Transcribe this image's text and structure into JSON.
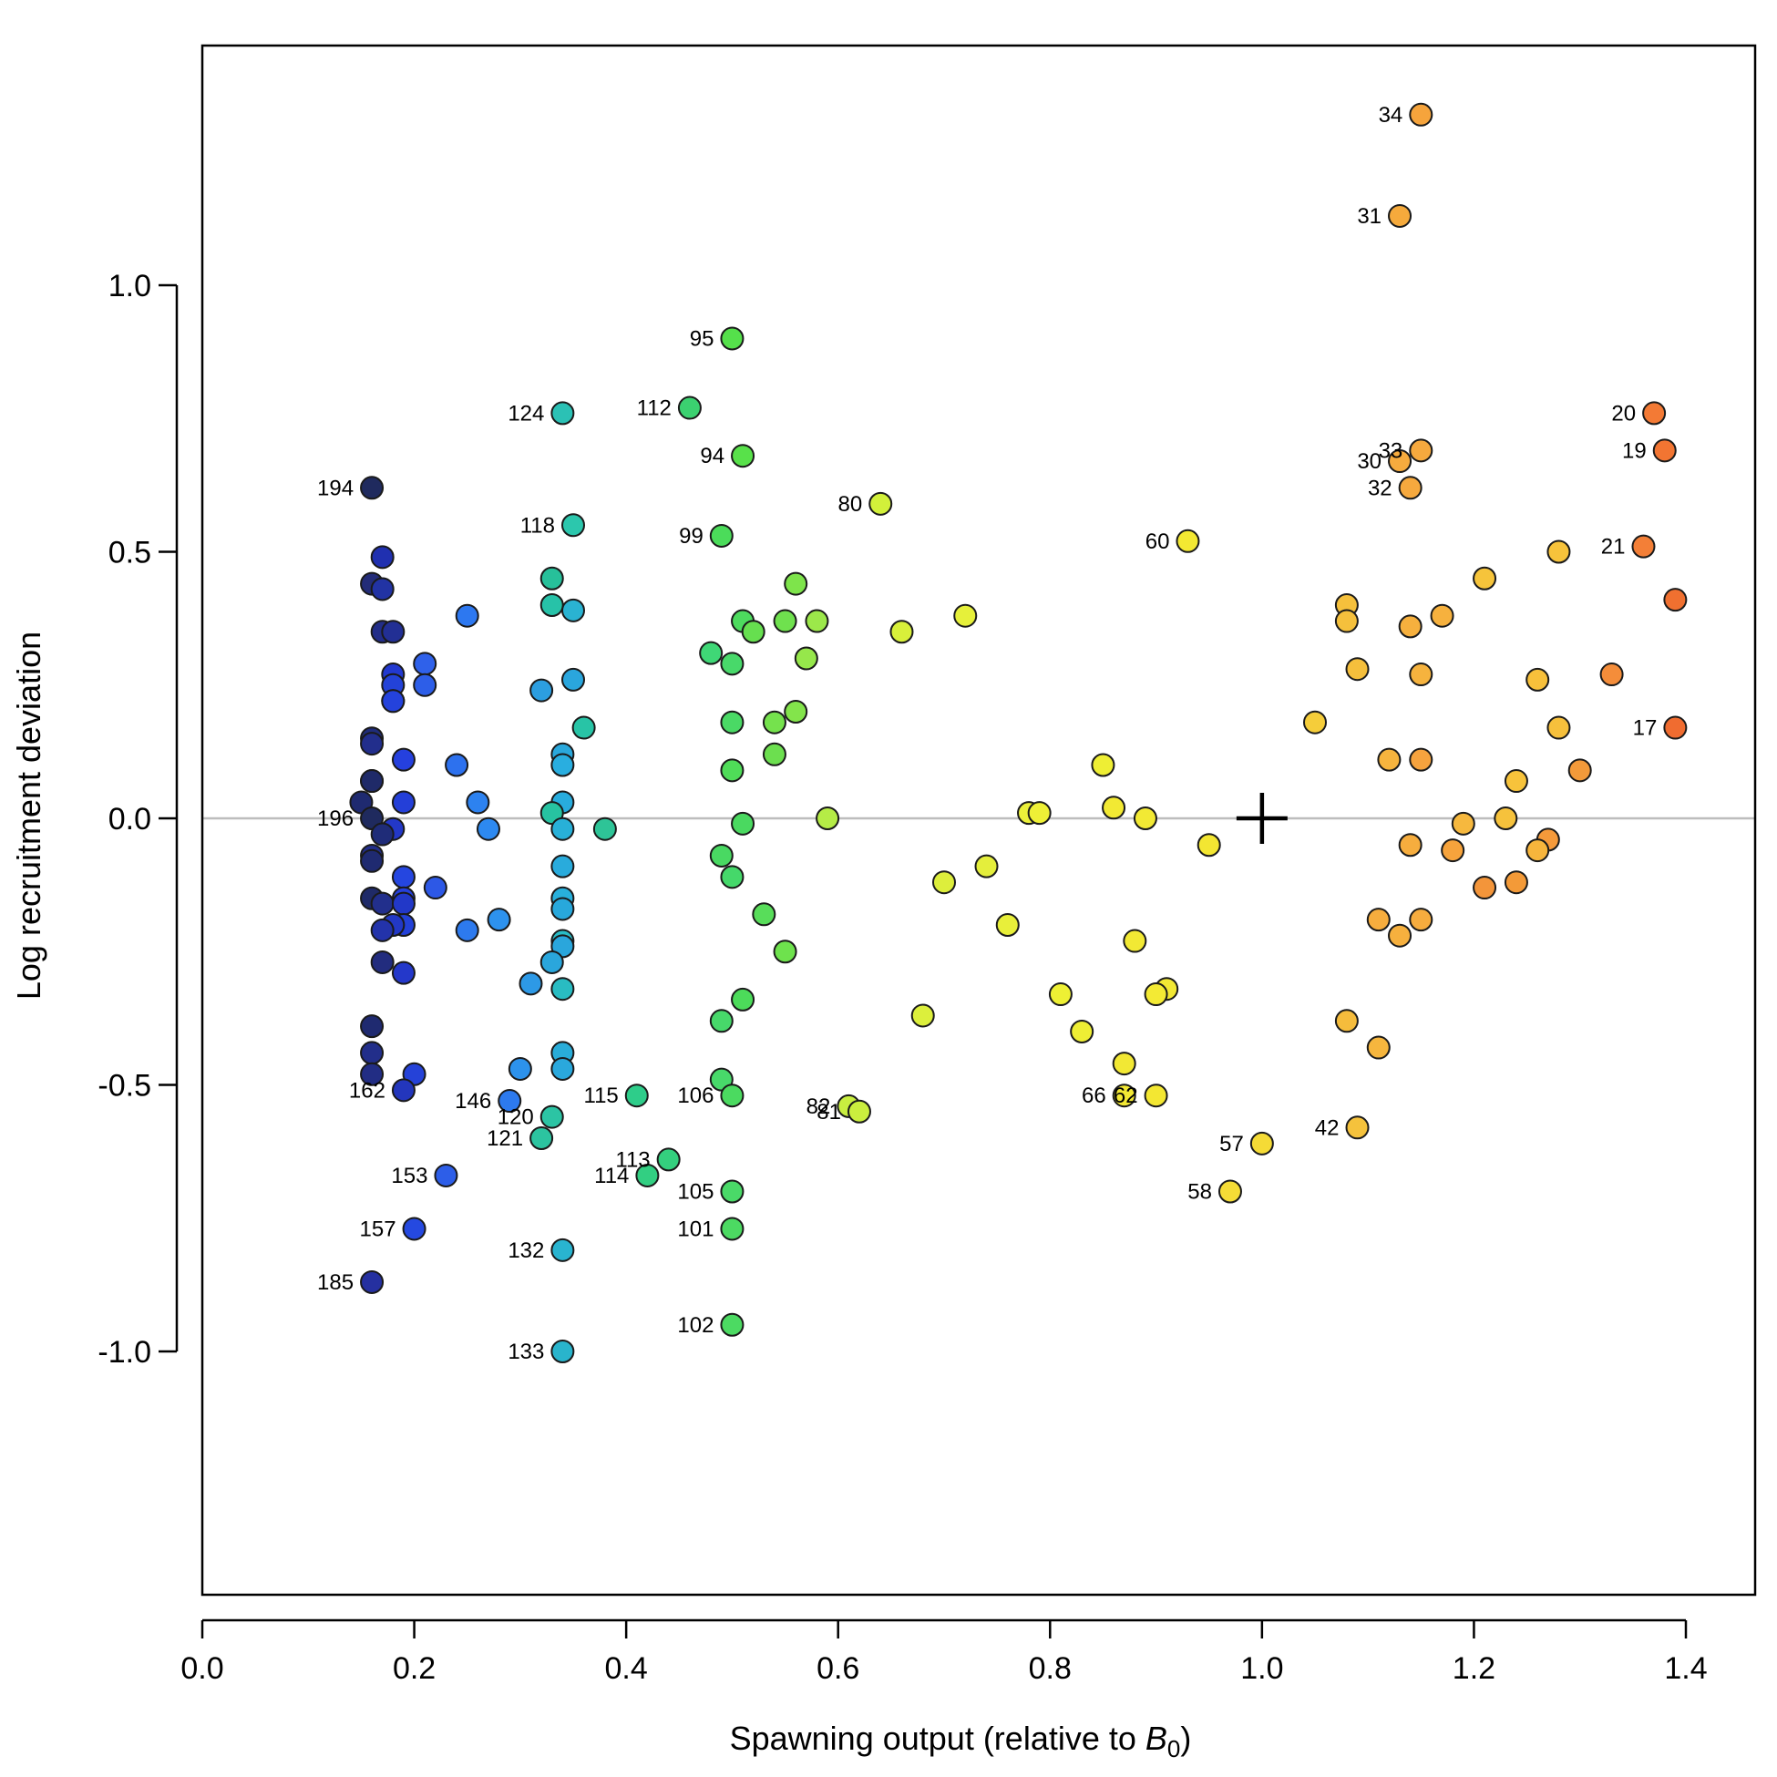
{
  "chart_data": {
    "type": "scatter",
    "title": "",
    "xlabel": "Spawning output (relative to ",
    "xlabel_sym": "B",
    "xlabel_sub": "0",
    "xlabel_end": ")",
    "ylabel": "Log recruitment deviation",
    "xlim": [
      0,
      1.4
    ],
    "ylim": [
      -1.4,
      1.4
    ],
    "xticks": [
      "0.0",
      "0.2",
      "0.4",
      "0.6",
      "0.8",
      "1.0",
      "1.2",
      "1.4"
    ],
    "yticks": [
      "-1.0",
      "-0.5",
      "0.0",
      "0.5",
      "1.0"
    ],
    "xtick_values": [
      0,
      0.2,
      0.4,
      0.6,
      0.8,
      1.0,
      1.2,
      1.4
    ],
    "ytick_values": [
      -1.0,
      -0.5,
      0.0,
      0.5,
      1.0
    ],
    "reference_line_y": 0,
    "reference_line_color": "#bdbdbd",
    "reference_marker": {
      "x": 1.0,
      "y": 0.0,
      "symbol": "plus"
    },
    "color_scale": "year-ordered rainbow (dark navy → blue → cyan → green → yellow → orange)",
    "points": [
      {
        "x": 1.15,
        "y": 1.32,
        "label": "34",
        "color": "#f6a43c"
      },
      {
        "x": 1.13,
        "y": 1.13,
        "label": "31",
        "color": "#f5aa3c"
      },
      {
        "x": 0.5,
        "y": 0.9,
        "label": "95",
        "color": "#55e04b"
      },
      {
        "x": 0.46,
        "y": 0.77,
        "label": "112",
        "color": "#3bd170"
      },
      {
        "x": 0.34,
        "y": 0.76,
        "label": "124",
        "color": "#2bc1b5"
      },
      {
        "x": 1.37,
        "y": 0.76,
        "label": "20",
        "color": "#f37a35"
      },
      {
        "x": 1.38,
        "y": 0.69,
        "label": "19",
        "color": "#f27532"
      },
      {
        "x": 0.51,
        "y": 0.68,
        "label": "94",
        "color": "#58e14a"
      },
      {
        "x": 1.15,
        "y": 0.69,
        "label": "33",
        "color": "#f6a93e"
      },
      {
        "x": 1.13,
        "y": 0.67,
        "label": "30",
        "color": "#f6ab3e"
      },
      {
        "x": 1.14,
        "y": 0.62,
        "label": "32",
        "color": "#f6a93e"
      },
      {
        "x": 0.16,
        "y": 0.62,
        "label": "194",
        "color": "#1f2a5e"
      },
      {
        "x": 0.64,
        "y": 0.59,
        "label": "80",
        "color": "#d2f03a"
      },
      {
        "x": 0.35,
        "y": 0.55,
        "label": "118",
        "color": "#2cc7ad"
      },
      {
        "x": 0.49,
        "y": 0.53,
        "label": "99",
        "color": "#4bdc5a"
      },
      {
        "x": 0.93,
        "y": 0.52,
        "label": "60",
        "color": "#f3e832"
      },
      {
        "x": 1.36,
        "y": 0.51,
        "label": "21",
        "color": "#f37f37"
      },
      {
        "x": 1.28,
        "y": 0.5,
        "color": "#f7c33b"
      },
      {
        "x": 0.17,
        "y": 0.49,
        "color": "#2030b0"
      },
      {
        "x": 1.21,
        "y": 0.45,
        "color": "#f6c43b"
      },
      {
        "x": 0.33,
        "y": 0.45,
        "color": "#27c09a"
      },
      {
        "x": 0.56,
        "y": 0.44,
        "color": "#7ee44b"
      },
      {
        "x": 0.16,
        "y": 0.44,
        "color": "#232c78"
      },
      {
        "x": 0.17,
        "y": 0.43,
        "color": "#2233a4"
      },
      {
        "x": 1.39,
        "y": 0.41,
        "color": "#f07030"
      },
      {
        "x": 1.08,
        "y": 0.4,
        "color": "#f5c03c"
      },
      {
        "x": 0.33,
        "y": 0.4,
        "color": "#27c2a8"
      },
      {
        "x": 0.35,
        "y": 0.39,
        "color": "#2ab3d2"
      },
      {
        "x": 0.72,
        "y": 0.38,
        "color": "#e6f03a"
      },
      {
        "x": 0.25,
        "y": 0.38,
        "color": "#2d78f0"
      },
      {
        "x": 1.17,
        "y": 0.38,
        "color": "#f6b13e"
      },
      {
        "x": 0.51,
        "y": 0.37,
        "color": "#4ddb5e"
      },
      {
        "x": 0.55,
        "y": 0.37,
        "color": "#6fe14e"
      },
      {
        "x": 0.58,
        "y": 0.37,
        "color": "#9ce84a"
      },
      {
        "x": 1.08,
        "y": 0.37,
        "color": "#f5c03c"
      },
      {
        "x": 1.14,
        "y": 0.36,
        "color": "#f6b03e"
      },
      {
        "x": 0.52,
        "y": 0.35,
        "color": "#66df4f"
      },
      {
        "x": 0.66,
        "y": 0.35,
        "color": "#d8f03a"
      },
      {
        "x": 0.17,
        "y": 0.35,
        "color": "#222d88"
      },
      {
        "x": 0.18,
        "y": 0.35,
        "color": "#222f94"
      },
      {
        "x": 0.48,
        "y": 0.31,
        "color": "#3fd776"
      },
      {
        "x": 0.57,
        "y": 0.3,
        "color": "#96e74b"
      },
      {
        "x": 0.21,
        "y": 0.29,
        "color": "#2f61ea"
      },
      {
        "x": 0.5,
        "y": 0.29,
        "color": "#48d96a"
      },
      {
        "x": 1.09,
        "y": 0.28,
        "color": "#f5bf3c"
      },
      {
        "x": 1.15,
        "y": 0.27,
        "color": "#f6b33e"
      },
      {
        "x": 1.33,
        "y": 0.27,
        "color": "#f48d3a"
      },
      {
        "x": 0.18,
        "y": 0.27,
        "color": "#2239d0"
      },
      {
        "x": 0.35,
        "y": 0.26,
        "color": "#2aa6dd"
      },
      {
        "x": 1.26,
        "y": 0.26,
        "color": "#f7c03b"
      },
      {
        "x": 0.18,
        "y": 0.25,
        "color": "#2342d8"
      },
      {
        "x": 0.21,
        "y": 0.25,
        "color": "#2d5ee8"
      },
      {
        "x": 0.32,
        "y": 0.24,
        "color": "#2c9ee0"
      },
      {
        "x": 0.18,
        "y": 0.22,
        "color": "#2438cc"
      },
      {
        "x": 0.18,
        "y": 0.22,
        "color": "#2442dc"
      },
      {
        "x": 0.56,
        "y": 0.2,
        "color": "#83e44b"
      },
      {
        "x": 0.5,
        "y": 0.18,
        "color": "#4ad965"
      },
      {
        "x": 0.54,
        "y": 0.18,
        "color": "#75e24d"
      },
      {
        "x": 1.05,
        "y": 0.18,
        "color": "#f5cd3a"
      },
      {
        "x": 0.36,
        "y": 0.17,
        "color": "#28c4a6"
      },
      {
        "x": 1.28,
        "y": 0.17,
        "color": "#f6c03c"
      },
      {
        "x": 1.39,
        "y": 0.17,
        "label": "17",
        "color": "#f06c30"
      },
      {
        "x": 0.16,
        "y": 0.15,
        "color": "#1f2c7a"
      },
      {
        "x": 0.16,
        "y": 0.14,
        "color": "#222e8c"
      },
      {
        "x": 0.34,
        "y": 0.12,
        "color": "#2aa8dc"
      },
      {
        "x": 0.54,
        "y": 0.12,
        "color": "#6cdf4f"
      },
      {
        "x": 0.19,
        "y": 0.11,
        "color": "#2540de"
      },
      {
        "x": 1.12,
        "y": 0.11,
        "color": "#f6b43e"
      },
      {
        "x": 1.15,
        "y": 0.11,
        "color": "#f6a33e"
      },
      {
        "x": 0.34,
        "y": 0.1,
        "color": "#29aee0"
      },
      {
        "x": 0.85,
        "y": 0.1,
        "color": "#eeee34"
      },
      {
        "x": 0.24,
        "y": 0.1,
        "color": "#2d71ee"
      },
      {
        "x": 1.3,
        "y": 0.09,
        "color": "#f39a3a"
      },
      {
        "x": 0.5,
        "y": 0.09,
        "color": "#4fdc58"
      },
      {
        "x": 1.24,
        "y": 0.07,
        "color": "#f7c33b"
      },
      {
        "x": 0.16,
        "y": 0.07,
        "color": "#242e78"
      },
      {
        "x": 0.16,
        "y": 0.07,
        "color": "#1f2a68"
      },
      {
        "x": 0.26,
        "y": 0.03,
        "color": "#2d82f0"
      },
      {
        "x": 0.34,
        "y": 0.03,
        "color": "#28acdd"
      },
      {
        "x": 0.19,
        "y": 0.03,
        "color": "#243fd8"
      },
      {
        "x": 0.15,
        "y": 0.03,
        "color": "#1f2a70"
      },
      {
        "x": 0.86,
        "y": 0.02,
        "color": "#f2e933"
      },
      {
        "x": 0.78,
        "y": 0.01,
        "color": "#ebf03a"
      },
      {
        "x": 0.79,
        "y": 0.01,
        "color": "#eef036"
      },
      {
        "x": 0.33,
        "y": 0.01,
        "color": "#27c3a1"
      },
      {
        "x": 0.89,
        "y": 0.0,
        "color": "#f2e934"
      },
      {
        "x": 0.59,
        "y": 0.0,
        "color": "#b5ec46"
      },
      {
        "x": 1.23,
        "y": 0.0,
        "color": "#f6c23c"
      },
      {
        "x": 0.16,
        "y": 0.0,
        "label": "196",
        "color": "#1f2a5e"
      },
      {
        "x": 0.51,
        "y": -0.01,
        "color": "#4ad960"
      },
      {
        "x": 1.19,
        "y": -0.01,
        "color": "#f6b83e"
      },
      {
        "x": 0.27,
        "y": -0.02,
        "color": "#2d89f0"
      },
      {
        "x": 0.18,
        "y": -0.02,
        "color": "#2338c8"
      },
      {
        "x": 0.34,
        "y": -0.02,
        "color": "#28b0d8"
      },
      {
        "x": 0.38,
        "y": -0.02,
        "color": "#2ec497"
      },
      {
        "x": 0.17,
        "y": -0.03,
        "color": "#1f2c78"
      },
      {
        "x": 1.27,
        "y": -0.04,
        "color": "#f59a3a"
      },
      {
        "x": 0.95,
        "y": -0.05,
        "color": "#f3e632"
      },
      {
        "x": 1.14,
        "y": -0.05,
        "color": "#f6ad3e"
      },
      {
        "x": 1.18,
        "y": -0.06,
        "color": "#f6a33c"
      },
      {
        "x": 1.26,
        "y": -0.06,
        "color": "#f7b53c"
      },
      {
        "x": 0.49,
        "y": -0.07,
        "color": "#49d962"
      },
      {
        "x": 0.16,
        "y": -0.07,
        "color": "#222e8a"
      },
      {
        "x": 0.16,
        "y": -0.08,
        "color": "#1f2a70"
      },
      {
        "x": 0.34,
        "y": -0.09,
        "color": "#29abdc"
      },
      {
        "x": 0.74,
        "y": -0.09,
        "color": "#e4ee3c"
      },
      {
        "x": 0.5,
        "y": -0.11,
        "color": "#45d86a"
      },
      {
        "x": 0.19,
        "y": -0.11,
        "color": "#2546e0"
      },
      {
        "x": 0.7,
        "y": -0.12,
        "color": "#ddee3c"
      },
      {
        "x": 1.24,
        "y": -0.12,
        "color": "#f39a38"
      },
      {
        "x": 0.22,
        "y": -0.13,
        "color": "#2d58e6"
      },
      {
        "x": 1.21,
        "y": -0.13,
        "color": "#f3953a"
      },
      {
        "x": 0.16,
        "y": -0.15,
        "color": "#1f2a68"
      },
      {
        "x": 0.34,
        "y": -0.15,
        "color": "#28b0dc"
      },
      {
        "x": 0.19,
        "y": -0.15,
        "color": "#2540dc"
      },
      {
        "x": 0.17,
        "y": -0.16,
        "color": "#222f8c"
      },
      {
        "x": 0.19,
        "y": -0.16,
        "color": "#2238c8"
      },
      {
        "x": 0.34,
        "y": -0.17,
        "color": "#28a8dc"
      },
      {
        "x": 0.53,
        "y": -0.18,
        "color": "#58dd5a"
      },
      {
        "x": 0.28,
        "y": -0.19,
        "color": "#2d92ee"
      },
      {
        "x": 1.11,
        "y": -0.19,
        "color": "#f6ad3e"
      },
      {
        "x": 1.15,
        "y": -0.19,
        "color": "#f6ac3e"
      },
      {
        "x": 0.19,
        "y": -0.2,
        "color": "#2341d8"
      },
      {
        "x": 0.18,
        "y": -0.2,
        "color": "#2238c6"
      },
      {
        "x": 0.25,
        "y": -0.21,
        "color": "#2d7aee"
      },
      {
        "x": 0.17,
        "y": -0.21,
        "color": "#2333aa"
      },
      {
        "x": 0.76,
        "y": -0.2,
        "color": "#e8ef3a"
      },
      {
        "x": 1.13,
        "y": -0.22,
        "color": "#f6b03e"
      },
      {
        "x": 0.34,
        "y": -0.23,
        "color": "#29bcc6"
      },
      {
        "x": 0.34,
        "y": -0.24,
        "color": "#2aa6dc"
      },
      {
        "x": 0.88,
        "y": -0.23,
        "color": "#f2e934"
      },
      {
        "x": 0.55,
        "y": -0.25,
        "color": "#6ee24d"
      },
      {
        "x": 0.33,
        "y": -0.27,
        "color": "#2aa6dc"
      },
      {
        "x": 0.17,
        "y": -0.27,
        "color": "#222c7e"
      },
      {
        "x": 0.19,
        "y": -0.29,
        "color": "#2438ca"
      },
      {
        "x": 0.31,
        "y": -0.31,
        "color": "#2d99e6"
      },
      {
        "x": 0.34,
        "y": -0.32,
        "color": "#29bcc2"
      },
      {
        "x": 0.91,
        "y": -0.32,
        "color": "#f2e834"
      },
      {
        "x": 0.9,
        "y": -0.33,
        "color": "#f3ea34"
      },
      {
        "x": 0.81,
        "y": -0.33,
        "color": "#eef034"
      },
      {
        "x": 0.51,
        "y": -0.34,
        "color": "#4cdb5a"
      },
      {
        "x": 0.68,
        "y": -0.37,
        "color": "#dcef3c"
      },
      {
        "x": 1.08,
        "y": -0.38,
        "color": "#f5bc3c"
      },
      {
        "x": 0.49,
        "y": -0.38,
        "color": "#47d86a"
      },
      {
        "x": 0.16,
        "y": -0.39,
        "color": "#1f2a70"
      },
      {
        "x": 0.83,
        "y": -0.4,
        "color": "#eeee34"
      },
      {
        "x": 1.11,
        "y": -0.43,
        "color": "#f6b63e"
      },
      {
        "x": 0.16,
        "y": -0.44,
        "color": "#222e8a"
      },
      {
        "x": 0.34,
        "y": -0.44,
        "color": "#29acd8"
      },
      {
        "x": 0.87,
        "y": -0.46,
        "color": "#f2e834"
      },
      {
        "x": 0.34,
        "y": -0.47,
        "color": "#2aa8dc"
      },
      {
        "x": 0.3,
        "y": -0.47,
        "color": "#2d92ec"
      },
      {
        "x": 0.2,
        "y": -0.48,
        "color": "#2542d8"
      },
      {
        "x": 0.16,
        "y": -0.48,
        "color": "#222d84"
      },
      {
        "x": 0.49,
        "y": -0.49,
        "color": "#48d96a"
      },
      {
        "x": 0.19,
        "y": -0.51,
        "label": "162",
        "color": "#2336bc"
      },
      {
        "x": 0.41,
        "y": -0.52,
        "label": "115",
        "color": "#2ecd8a"
      },
      {
        "x": 0.5,
        "y": -0.52,
        "label": "106",
        "color": "#4bda60"
      },
      {
        "x": 0.29,
        "y": -0.53,
        "label": "146",
        "color": "#2d7aee"
      },
      {
        "x": 0.87,
        "y": -0.52,
        "label": "66",
        "color": "#f2e834"
      },
      {
        "x": 0.9,
        "y": -0.52,
        "label": "62",
        "color": "#f3e732"
      },
      {
        "x": 0.61,
        "y": -0.54,
        "label": "82",
        "color": "#c8ee40"
      },
      {
        "x": 0.62,
        "y": -0.55,
        "label": "81",
        "color": "#caee3e"
      },
      {
        "x": 0.33,
        "y": -0.56,
        "label": "120",
        "color": "#2cc4a4"
      },
      {
        "x": 1.09,
        "y": -0.58,
        "label": "42",
        "color": "#f5c23c"
      },
      {
        "x": 0.32,
        "y": -0.6,
        "label": "121",
        "color": "#2cc4a0"
      },
      {
        "x": 1.0,
        "y": -0.61,
        "label": "57",
        "color": "#f5db36"
      },
      {
        "x": 0.44,
        "y": -0.64,
        "label": "113",
        "color": "#34d07e"
      },
      {
        "x": 0.42,
        "y": -0.67,
        "label": "114",
        "color": "#32cf82"
      },
      {
        "x": 0.23,
        "y": -0.67,
        "label": "153",
        "color": "#2d5ee8"
      },
      {
        "x": 0.97,
        "y": -0.7,
        "label": "58",
        "color": "#f5dc36"
      },
      {
        "x": 0.5,
        "y": -0.7,
        "label": "105",
        "color": "#4ad968"
      },
      {
        "x": 0.2,
        "y": -0.77,
        "label": "157",
        "color": "#2549e0"
      },
      {
        "x": 0.5,
        "y": -0.77,
        "label": "101",
        "color": "#4cda62"
      },
      {
        "x": 0.34,
        "y": -0.81,
        "label": "132",
        "color": "#29b4d0"
      },
      {
        "x": 0.16,
        "y": -0.87,
        "label": "185",
        "color": "#2530a0"
      },
      {
        "x": 0.5,
        "y": -0.95,
        "label": "102",
        "color": "#4cda62"
      },
      {
        "x": 0.34,
        "y": -1.0,
        "label": "133",
        "color": "#29b4cc"
      }
    ]
  }
}
